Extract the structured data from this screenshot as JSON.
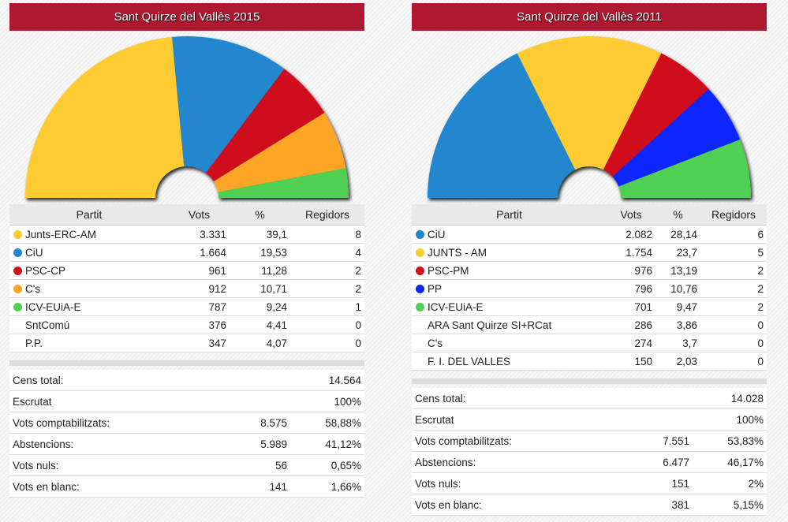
{
  "chart_data": [
    {
      "type": "pie",
      "subtype": "semicircle-hemicycle",
      "title": "Sant Quirze del Vallès 2015",
      "value_field": "regidors",
      "slices": [
        {
          "label": "Junts-ERC-AM",
          "value": 8,
          "color": "#fecb32"
        },
        {
          "label": "CiU",
          "value": 4,
          "color": "#2187cc"
        },
        {
          "label": "PSC-CP",
          "value": 2,
          "color": "#d0111e"
        },
        {
          "label": "C's",
          "value": 2,
          "color": "#fea528"
        },
        {
          "label": "ICV-EUiA-E",
          "value": 1,
          "color": "#4fd053"
        }
      ]
    },
    {
      "type": "pie",
      "subtype": "semicircle-hemicycle",
      "title": "Sant Quirze del Vallès 2011",
      "value_field": "regidors",
      "slices": [
        {
          "label": "CiU",
          "value": 6,
          "color": "#2187cc"
        },
        {
          "label": "JUNTS - AM",
          "value": 5,
          "color": "#fecb32"
        },
        {
          "label": "PSC-PM",
          "value": 2,
          "color": "#d0111e"
        },
        {
          "label": "PP",
          "value": 2,
          "color": "#0d25fe"
        },
        {
          "label": "ICV-EUiA-E",
          "value": 2,
          "color": "#4fd053"
        }
      ]
    }
  ],
  "panels": [
    {
      "title": "Sant Quirze del Vallès 2015",
      "headers": {
        "party": "Partit",
        "votes": "Vots",
        "pct": "%",
        "seats": "Regidors"
      },
      "rows": [
        {
          "party": "Junts-ERC-AM",
          "votes": "3.331",
          "pct": "39,1",
          "seats": "8",
          "color": "#fecb32"
        },
        {
          "party": "CiU",
          "votes": "1.664",
          "pct": "19,53",
          "seats": "4",
          "color": "#2187cc"
        },
        {
          "party": "PSC-CP",
          "votes": "961",
          "pct": "11,28",
          "seats": "2",
          "color": "#d0111e"
        },
        {
          "party": "C's",
          "votes": "912",
          "pct": "10,71",
          "seats": "2",
          "color": "#fea528"
        },
        {
          "party": "ICV-EUiA-E",
          "votes": "787",
          "pct": "9,24",
          "seats": "1",
          "color": "#4fd053"
        },
        {
          "party": "SntComú",
          "votes": "376",
          "pct": "4,41",
          "seats": "0",
          "color": ""
        },
        {
          "party": "P.P.",
          "votes": "347",
          "pct": "4,07",
          "seats": "0",
          "color": ""
        }
      ],
      "summary": [
        {
          "label": "Cens total:",
          "value": "",
          "pct": "14.564"
        },
        {
          "label": "Escrutat",
          "value": "",
          "pct": "100%"
        },
        {
          "label": "Vots comptabilitzats:",
          "value": "8.575",
          "pct": "58,88%"
        },
        {
          "label": "Abstencions:",
          "value": "5.989",
          "pct": "41,12%"
        },
        {
          "label": "Vots nuls:",
          "value": "56",
          "pct": "0,65%"
        },
        {
          "label": "Vots en blanc:",
          "value": "141",
          "pct": "1,66%"
        }
      ]
    },
    {
      "title": "Sant Quirze del Vallès 2011",
      "headers": {
        "party": "Partit",
        "votes": "Vots",
        "pct": "%",
        "seats": "Regidors"
      },
      "rows": [
        {
          "party": "CiU",
          "votes": "2.082",
          "pct": "28,14",
          "seats": "6",
          "color": "#2187cc"
        },
        {
          "party": "JUNTS - AM",
          "votes": "1.754",
          "pct": "23,7",
          "seats": "5",
          "color": "#fecb32"
        },
        {
          "party": "PSC-PM",
          "votes": "976",
          "pct": "13,19",
          "seats": "2",
          "color": "#d0111e"
        },
        {
          "party": "PP",
          "votes": "796",
          "pct": "10,76",
          "seats": "2",
          "color": "#0d25fe"
        },
        {
          "party": "ICV-EUiA-E",
          "votes": "701",
          "pct": "9,47",
          "seats": "2",
          "color": "#4fd053"
        },
        {
          "party": "ARA Sant Quirze SI+RCat",
          "votes": "286",
          "pct": "3,86",
          "seats": "0",
          "color": ""
        },
        {
          "party": "C's",
          "votes": "274",
          "pct": "3,7",
          "seats": "0",
          "color": ""
        },
        {
          "party": "F. I. DEL VALLES",
          "votes": "150",
          "pct": "2,03",
          "seats": "0",
          "color": ""
        }
      ],
      "summary": [
        {
          "label": "Cens total:",
          "value": "",
          "pct": "14.028"
        },
        {
          "label": "Escrutat",
          "value": "",
          "pct": "100%"
        },
        {
          "label": "Vots comptabilitzats:",
          "value": "7.551",
          "pct": "53,83%"
        },
        {
          "label": "Abstencions:",
          "value": "6.477",
          "pct": "46,17%"
        },
        {
          "label": "Vots nuls:",
          "value": "151",
          "pct": "2%"
        },
        {
          "label": "Vots en blanc:",
          "value": "381",
          "pct": "5,15%"
        }
      ]
    }
  ]
}
